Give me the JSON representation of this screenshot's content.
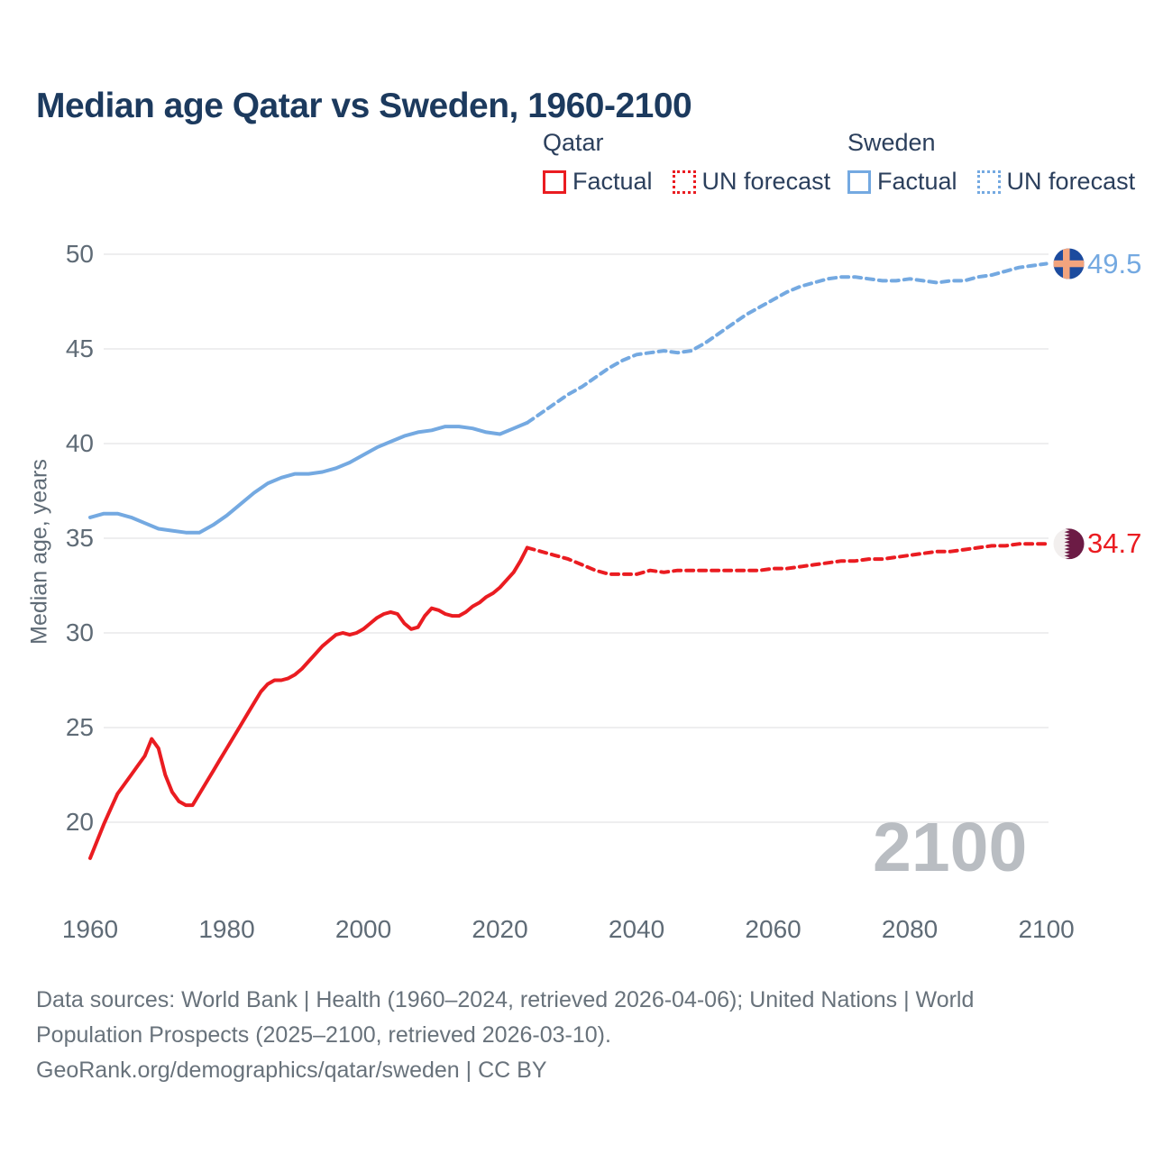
{
  "header": {
    "title": "Median age Qatar vs Sweden, 1960-2100"
  },
  "legend": {
    "groups": [
      {
        "name": "Qatar",
        "color": "#ea1c21",
        "items": [
          {
            "label": "Factual",
            "style": "solid"
          },
          {
            "label": "UN forecast",
            "style": "dotted"
          }
        ]
      },
      {
        "name": "Sweden",
        "color": "#74a9e1",
        "items": [
          {
            "label": "Factual",
            "style": "solid"
          },
          {
            "label": "UN forecast",
            "style": "dotted"
          }
        ]
      }
    ]
  },
  "axes": {
    "y": {
      "title": "Median age, years"
    }
  },
  "watermark": "2100",
  "footer": {
    "lines": [
      "Data sources: World Bank | Health (1960–2024, retrieved 2026-04-06); United Nations | World",
      "Population Prospects (2025–2100, retrieved 2026-03-10).",
      "GeoRank.org/demographics/qatar/sweden | CC BY"
    ]
  },
  "colors": {
    "background": "#ffffff",
    "title": "#1c3a5e",
    "legend_text": "#2b3f5c",
    "qatar": "#ea1c21",
    "sweden": "#74a9e1",
    "gridline": "#e8e8ea",
    "tick_text": "#5f6b76",
    "axis_title_text": "#5f6b76",
    "watermark": "#b9bdc2",
    "footer_text": "#68727b",
    "sweden_flag_blue": "#1c4b9e",
    "sweden_flag_cross": "#f2a47e",
    "qatar_flag_white": "#f2efee",
    "qatar_flag_maroon": "#6c1b45"
  },
  "chart_data": {
    "type": "line",
    "title": "Median age Qatar vs Sweden, 1960-2100",
    "xlabel": "",
    "ylabel": "Median age, years",
    "xlim": [
      1955,
      2112
    ],
    "ylim": [
      18,
      50
    ],
    "xticks": [
      1960,
      1980,
      2000,
      2020,
      2040,
      2060,
      2080,
      2100
    ],
    "yticks": [
      20,
      25,
      30,
      35,
      40,
      45,
      50
    ],
    "grid": "horizontal",
    "legend_position": "top-right",
    "series": [
      {
        "name": "Qatar — Factual",
        "style": "solid",
        "color": "#ea1c21",
        "points": [
          [
            1960,
            18.1
          ],
          [
            1961,
            19.0
          ],
          [
            1962,
            19.9
          ],
          [
            1963,
            20.7
          ],
          [
            1964,
            21.5
          ],
          [
            1965,
            22.0
          ],
          [
            1966,
            22.5
          ],
          [
            1967,
            23.0
          ],
          [
            1968,
            23.5
          ],
          [
            1969,
            24.4
          ],
          [
            1970,
            23.9
          ],
          [
            1971,
            22.5
          ],
          [
            1972,
            21.6
          ],
          [
            1973,
            21.1
          ],
          [
            1974,
            20.9
          ],
          [
            1975,
            20.9
          ],
          [
            1976,
            21.5
          ],
          [
            1977,
            22.1
          ],
          [
            1978,
            22.7
          ],
          [
            1979,
            23.3
          ],
          [
            1980,
            23.9
          ],
          [
            1981,
            24.5
          ],
          [
            1982,
            25.1
          ],
          [
            1983,
            25.7
          ],
          [
            1984,
            26.3
          ],
          [
            1985,
            26.9
          ],
          [
            1986,
            27.3
          ],
          [
            1987,
            27.5
          ],
          [
            1988,
            27.5
          ],
          [
            1989,
            27.6
          ],
          [
            1990,
            27.8
          ],
          [
            1991,
            28.1
          ],
          [
            1992,
            28.5
          ],
          [
            1993,
            28.9
          ],
          [
            1994,
            29.3
          ],
          [
            1995,
            29.6
          ],
          [
            1996,
            29.9
          ],
          [
            1997,
            30.0
          ],
          [
            1998,
            29.9
          ],
          [
            1999,
            30.0
          ],
          [
            2000,
            30.2
          ],
          [
            2001,
            30.5
          ],
          [
            2002,
            30.8
          ],
          [
            2003,
            31.0
          ],
          [
            2004,
            31.1
          ],
          [
            2005,
            31.0
          ],
          [
            2006,
            30.5
          ],
          [
            2007,
            30.2
          ],
          [
            2008,
            30.3
          ],
          [
            2009,
            30.9
          ],
          [
            2010,
            31.3
          ],
          [
            2011,
            31.2
          ],
          [
            2012,
            31.0
          ],
          [
            2013,
            30.9
          ],
          [
            2014,
            30.9
          ],
          [
            2015,
            31.1
          ],
          [
            2016,
            31.4
          ],
          [
            2017,
            31.6
          ],
          [
            2018,
            31.9
          ],
          [
            2019,
            32.1
          ],
          [
            2020,
            32.4
          ],
          [
            2021,
            32.8
          ],
          [
            2022,
            33.2
          ],
          [
            2023,
            33.8
          ],
          [
            2024,
            34.5
          ]
        ]
      },
      {
        "name": "Qatar — UN forecast",
        "style": "dashed",
        "color": "#ea1c21",
        "points": [
          [
            2024,
            34.5
          ],
          [
            2026,
            34.3
          ],
          [
            2028,
            34.1
          ],
          [
            2030,
            33.9
          ],
          [
            2032,
            33.6
          ],
          [
            2034,
            33.3
          ],
          [
            2036,
            33.1
          ],
          [
            2038,
            33.1
          ],
          [
            2040,
            33.1
          ],
          [
            2042,
            33.3
          ],
          [
            2044,
            33.2
          ],
          [
            2046,
            33.3
          ],
          [
            2048,
            33.3
          ],
          [
            2050,
            33.3
          ],
          [
            2052,
            33.3
          ],
          [
            2054,
            33.3
          ],
          [
            2056,
            33.3
          ],
          [
            2058,
            33.3
          ],
          [
            2060,
            33.4
          ],
          [
            2062,
            33.4
          ],
          [
            2064,
            33.5
          ],
          [
            2066,
            33.6
          ],
          [
            2068,
            33.7
          ],
          [
            2070,
            33.8
          ],
          [
            2072,
            33.8
          ],
          [
            2074,
            33.9
          ],
          [
            2076,
            33.9
          ],
          [
            2078,
            34.0
          ],
          [
            2080,
            34.1
          ],
          [
            2082,
            34.2
          ],
          [
            2084,
            34.3
          ],
          [
            2086,
            34.3
          ],
          [
            2088,
            34.4
          ],
          [
            2090,
            34.5
          ],
          [
            2092,
            34.6
          ],
          [
            2094,
            34.6
          ],
          [
            2096,
            34.7
          ],
          [
            2098,
            34.7
          ],
          [
            2100,
            34.7
          ]
        ]
      },
      {
        "name": "Sweden — Factual",
        "style": "solid",
        "color": "#74a9e1",
        "points": [
          [
            1960,
            36.1
          ],
          [
            1962,
            36.3
          ],
          [
            1964,
            36.3
          ],
          [
            1966,
            36.1
          ],
          [
            1968,
            35.8
          ],
          [
            1970,
            35.5
          ],
          [
            1972,
            35.4
          ],
          [
            1974,
            35.3
          ],
          [
            1976,
            35.3
          ],
          [
            1978,
            35.7
          ],
          [
            1980,
            36.2
          ],
          [
            1982,
            36.8
          ],
          [
            1984,
            37.4
          ],
          [
            1986,
            37.9
          ],
          [
            1988,
            38.2
          ],
          [
            1990,
            38.4
          ],
          [
            1992,
            38.4
          ],
          [
            1994,
            38.5
          ],
          [
            1996,
            38.7
          ],
          [
            1998,
            39.0
          ],
          [
            2000,
            39.4
          ],
          [
            2002,
            39.8
          ],
          [
            2004,
            40.1
          ],
          [
            2006,
            40.4
          ],
          [
            2008,
            40.6
          ],
          [
            2010,
            40.7
          ],
          [
            2012,
            40.9
          ],
          [
            2014,
            40.9
          ],
          [
            2016,
            40.8
          ],
          [
            2018,
            40.6
          ],
          [
            2020,
            40.5
          ],
          [
            2022,
            40.8
          ],
          [
            2024,
            41.1
          ]
        ]
      },
      {
        "name": "Sweden — UN forecast",
        "style": "dashed",
        "color": "#74a9e1",
        "points": [
          [
            2024,
            41.1
          ],
          [
            2026,
            41.6
          ],
          [
            2028,
            42.1
          ],
          [
            2030,
            42.6
          ],
          [
            2032,
            43.0
          ],
          [
            2034,
            43.5
          ],
          [
            2036,
            44.0
          ],
          [
            2038,
            44.4
          ],
          [
            2040,
            44.7
          ],
          [
            2042,
            44.8
          ],
          [
            2044,
            44.9
          ],
          [
            2046,
            44.8
          ],
          [
            2048,
            44.9
          ],
          [
            2050,
            45.3
          ],
          [
            2052,
            45.8
          ],
          [
            2054,
            46.3
          ],
          [
            2056,
            46.8
          ],
          [
            2058,
            47.2
          ],
          [
            2060,
            47.6
          ],
          [
            2062,
            48.0
          ],
          [
            2064,
            48.3
          ],
          [
            2066,
            48.5
          ],
          [
            2068,
            48.7
          ],
          [
            2070,
            48.8
          ],
          [
            2072,
            48.8
          ],
          [
            2074,
            48.7
          ],
          [
            2076,
            48.6
          ],
          [
            2078,
            48.6
          ],
          [
            2080,
            48.7
          ],
          [
            2082,
            48.6
          ],
          [
            2084,
            48.5
          ],
          [
            2086,
            48.6
          ],
          [
            2088,
            48.6
          ],
          [
            2090,
            48.8
          ],
          [
            2092,
            48.9
          ],
          [
            2094,
            49.1
          ],
          [
            2096,
            49.3
          ],
          [
            2098,
            49.4
          ],
          [
            2100,
            49.5
          ]
        ]
      }
    ],
    "end_labels": {
      "sweden": {
        "series": "Sweden",
        "value": "49.5"
      },
      "qatar": {
        "series": "Qatar",
        "value": "34.7"
      }
    }
  }
}
